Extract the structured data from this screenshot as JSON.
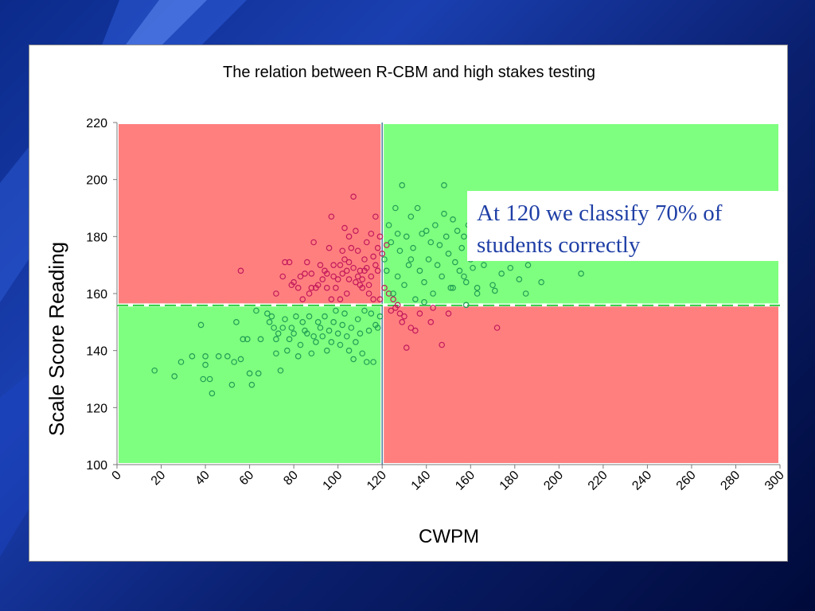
{
  "chart_data": {
    "type": "scatter",
    "title": "The relation between R-CBM and high stakes testing",
    "xlabel": "CWPM",
    "ylabel": "Scale Score Reading",
    "xlim": [
      0,
      300
    ],
    "ylim": [
      100,
      220
    ],
    "x_ticks": [
      0,
      20,
      40,
      60,
      80,
      100,
      120,
      140,
      160,
      180,
      200,
      220,
      240,
      260,
      280,
      300
    ],
    "y_ticks": [
      100,
      120,
      140,
      160,
      180,
      200,
      220
    ],
    "cut_x": 120,
    "cut_y": 156,
    "annotation": "At 120 we classify 70% of students correctly",
    "regions": [
      {
        "x_range": [
          0,
          120
        ],
        "y_range": [
          156,
          220
        ],
        "color": "#ff7f7f"
      },
      {
        "x_range": [
          120,
          300
        ],
        "y_range": [
          156,
          220
        ],
        "color": "#7fff7f"
      },
      {
        "x_range": [
          0,
          120
        ],
        "y_range": [
          100,
          156
        ],
        "color": "#7fff7f"
      },
      {
        "x_range": [
          120,
          300
        ],
        "y_range": [
          100,
          156
        ],
        "color": "#ff7f7f"
      }
    ],
    "series": [
      {
        "color": "#c2185b",
        "points": [
          [
            56,
            168
          ],
          [
            72,
            160
          ],
          [
            75,
            166
          ],
          [
            76,
            171
          ],
          [
            78,
            171
          ],
          [
            79,
            163
          ],
          [
            80,
            164
          ],
          [
            82,
            162
          ],
          [
            83,
            166
          ],
          [
            85,
            167
          ],
          [
            86,
            171
          ],
          [
            88,
            162
          ],
          [
            88,
            167
          ],
          [
            89,
            178
          ],
          [
            90,
            162
          ],
          [
            92,
            170
          ],
          [
            93,
            165
          ],
          [
            94,
            168
          ],
          [
            95,
            162
          ],
          [
            96,
            176
          ],
          [
            97,
            187
          ],
          [
            97,
            158
          ],
          [
            98,
            166
          ],
          [
            99,
            162
          ],
          [
            100,
            165
          ],
          [
            101,
            170
          ],
          [
            101,
            158
          ],
          [
            102,
            175
          ],
          [
            103,
            183
          ],
          [
            103,
            172
          ],
          [
            104,
            168
          ],
          [
            104,
            160
          ],
          [
            105,
            171
          ],
          [
            105,
            165
          ],
          [
            106,
            176
          ],
          [
            107,
            194
          ],
          [
            107,
            169
          ],
          [
            108,
            182
          ],
          [
            108,
            164
          ],
          [
            109,
            175
          ],
          [
            110,
            168
          ],
          [
            110,
            163
          ],
          [
            111,
            165
          ],
          [
            112,
            172
          ],
          [
            112,
            168
          ],
          [
            113,
            169
          ],
          [
            113,
            178
          ],
          [
            114,
            160
          ],
          [
            115,
            181
          ],
          [
            115,
            166
          ],
          [
            116,
            173
          ],
          [
            117,
            187
          ],
          [
            117,
            170
          ],
          [
            118,
            168
          ],
          [
            118,
            176
          ],
          [
            119,
            158
          ],
          [
            119,
            180
          ],
          [
            120,
            174
          ],
          [
            121,
            162
          ],
          [
            122,
            177
          ],
          [
            123,
            160
          ],
          [
            124,
            154
          ],
          [
            125,
            158
          ],
          [
            126,
            155
          ],
          [
            127,
            156
          ],
          [
            128,
            153
          ],
          [
            129,
            150
          ],
          [
            130,
            152
          ],
          [
            131,
            141
          ],
          [
            133,
            148
          ],
          [
            135,
            147
          ],
          [
            137,
            153
          ],
          [
            142,
            150
          ],
          [
            143,
            155
          ],
          [
            147,
            142
          ],
          [
            150,
            153
          ],
          [
            172,
            148
          ],
          [
            105,
            180
          ],
          [
            102,
            167
          ],
          [
            109,
            166
          ],
          [
            111,
            162
          ],
          [
            114,
            163
          ],
          [
            116,
            158
          ],
          [
            98,
            170
          ],
          [
            95,
            167
          ],
          [
            91,
            163
          ],
          [
            87,
            160
          ],
          [
            84,
            158
          ]
        ]
      },
      {
        "color": "#1f9d55",
        "points": [
          [
            17,
            133
          ],
          [
            26,
            131
          ],
          [
            29,
            136
          ],
          [
            34,
            138
          ],
          [
            38,
            149
          ],
          [
            39,
            130
          ],
          [
            40,
            135
          ],
          [
            40,
            138
          ],
          [
            42,
            130
          ],
          [
            43,
            125
          ],
          [
            46,
            138
          ],
          [
            50,
            138
          ],
          [
            52,
            128
          ],
          [
            53,
            136
          ],
          [
            54,
            150
          ],
          [
            56,
            137
          ],
          [
            57,
            144
          ],
          [
            59,
            144
          ],
          [
            60,
            132
          ],
          [
            61,
            128
          ],
          [
            63,
            154
          ],
          [
            64,
            132
          ],
          [
            65,
            144
          ],
          [
            68,
            153
          ],
          [
            69,
            150
          ],
          [
            70,
            152
          ],
          [
            71,
            148
          ],
          [
            72,
            144
          ],
          [
            72,
            139
          ],
          [
            73,
            146
          ],
          [
            74,
            133
          ],
          [
            75,
            148
          ],
          [
            76,
            151
          ],
          [
            77,
            140
          ],
          [
            78,
            144
          ],
          [
            79,
            148
          ],
          [
            80,
            146
          ],
          [
            81,
            152
          ],
          [
            82,
            138
          ],
          [
            83,
            142
          ],
          [
            84,
            150
          ],
          [
            85,
            147
          ],
          [
            86,
            146
          ],
          [
            87,
            152
          ],
          [
            88,
            139
          ],
          [
            89,
            145
          ],
          [
            90,
            143
          ],
          [
            91,
            150
          ],
          [
            92,
            148
          ],
          [
            93,
            145
          ],
          [
            94,
            152
          ],
          [
            95,
            140
          ],
          [
            96,
            147
          ],
          [
            97,
            143
          ],
          [
            98,
            150
          ],
          [
            99,
            154
          ],
          [
            100,
            146
          ],
          [
            101,
            142
          ],
          [
            102,
            149
          ],
          [
            103,
            153
          ],
          [
            104,
            145
          ],
          [
            105,
            140
          ],
          [
            106,
            148
          ],
          [
            107,
            137
          ],
          [
            108,
            143
          ],
          [
            109,
            151
          ],
          [
            110,
            146
          ],
          [
            111,
            139
          ],
          [
            112,
            154
          ],
          [
            113,
            136
          ],
          [
            114,
            147
          ],
          [
            115,
            153
          ],
          [
            116,
            136
          ],
          [
            117,
            149
          ],
          [
            118,
            148
          ],
          [
            119,
            152
          ],
          [
            121,
            172
          ],
          [
            122,
            168
          ],
          [
            123,
            184
          ],
          [
            124,
            178
          ],
          [
            125,
            160
          ],
          [
            126,
            190
          ],
          [
            127,
            166
          ],
          [
            128,
            175
          ],
          [
            129,
            198
          ],
          [
            130,
            163
          ],
          [
            131,
            180
          ],
          [
            132,
            170
          ],
          [
            133,
            187
          ],
          [
            134,
            176
          ],
          [
            135,
            158
          ],
          [
            136,
            190
          ],
          [
            137,
            168
          ],
          [
            138,
            181
          ],
          [
            139,
            164
          ],
          [
            140,
            182
          ],
          [
            141,
            172
          ],
          [
            142,
            178
          ],
          [
            143,
            160
          ],
          [
            144,
            184
          ],
          [
            145,
            170
          ],
          [
            146,
            177
          ],
          [
            147,
            166
          ],
          [
            148,
            188
          ],
          [
            149,
            180
          ],
          [
            150,
            174
          ],
          [
            151,
            162
          ],
          [
            152,
            186
          ],
          [
            153,
            171
          ],
          [
            154,
            182
          ],
          [
            155,
            168
          ],
          [
            156,
            176
          ],
          [
            157,
            180
          ],
          [
            158,
            164
          ],
          [
            159,
            184
          ],
          [
            160,
            172
          ],
          [
            161,
            169
          ],
          [
            162,
            178
          ],
          [
            163,
            160
          ],
          [
            164,
            173
          ],
          [
            165,
            182
          ],
          [
            166,
            170
          ],
          [
            168,
            176
          ],
          [
            170,
            163
          ],
          [
            172,
            180
          ],
          [
            174,
            167
          ],
          [
            175,
            184
          ],
          [
            176,
            173
          ],
          [
            178,
            169
          ],
          [
            180,
            178
          ],
          [
            182,
            165
          ],
          [
            184,
            174
          ],
          [
            186,
            170
          ],
          [
            188,
            182
          ],
          [
            190,
            176
          ],
          [
            192,
            164
          ],
          [
            194,
            184
          ],
          [
            196,
            178
          ],
          [
            200,
            184
          ],
          [
            205,
            174
          ],
          [
            210,
            167
          ],
          [
            225,
            182
          ],
          [
            225,
            176
          ],
          [
            232,
            180
          ],
          [
            238,
            178
          ],
          [
            245,
            176
          ],
          [
            148,
            198
          ],
          [
            158,
            156
          ],
          [
            163,
            162
          ],
          [
            171,
            161
          ],
          [
            185,
            160
          ],
          [
            127,
            181
          ],
          [
            133,
            172
          ],
          [
            139,
            157
          ],
          [
            152,
            162
          ],
          [
            157,
            166
          ],
          [
            168,
            180
          ]
        ]
      }
    ]
  }
}
